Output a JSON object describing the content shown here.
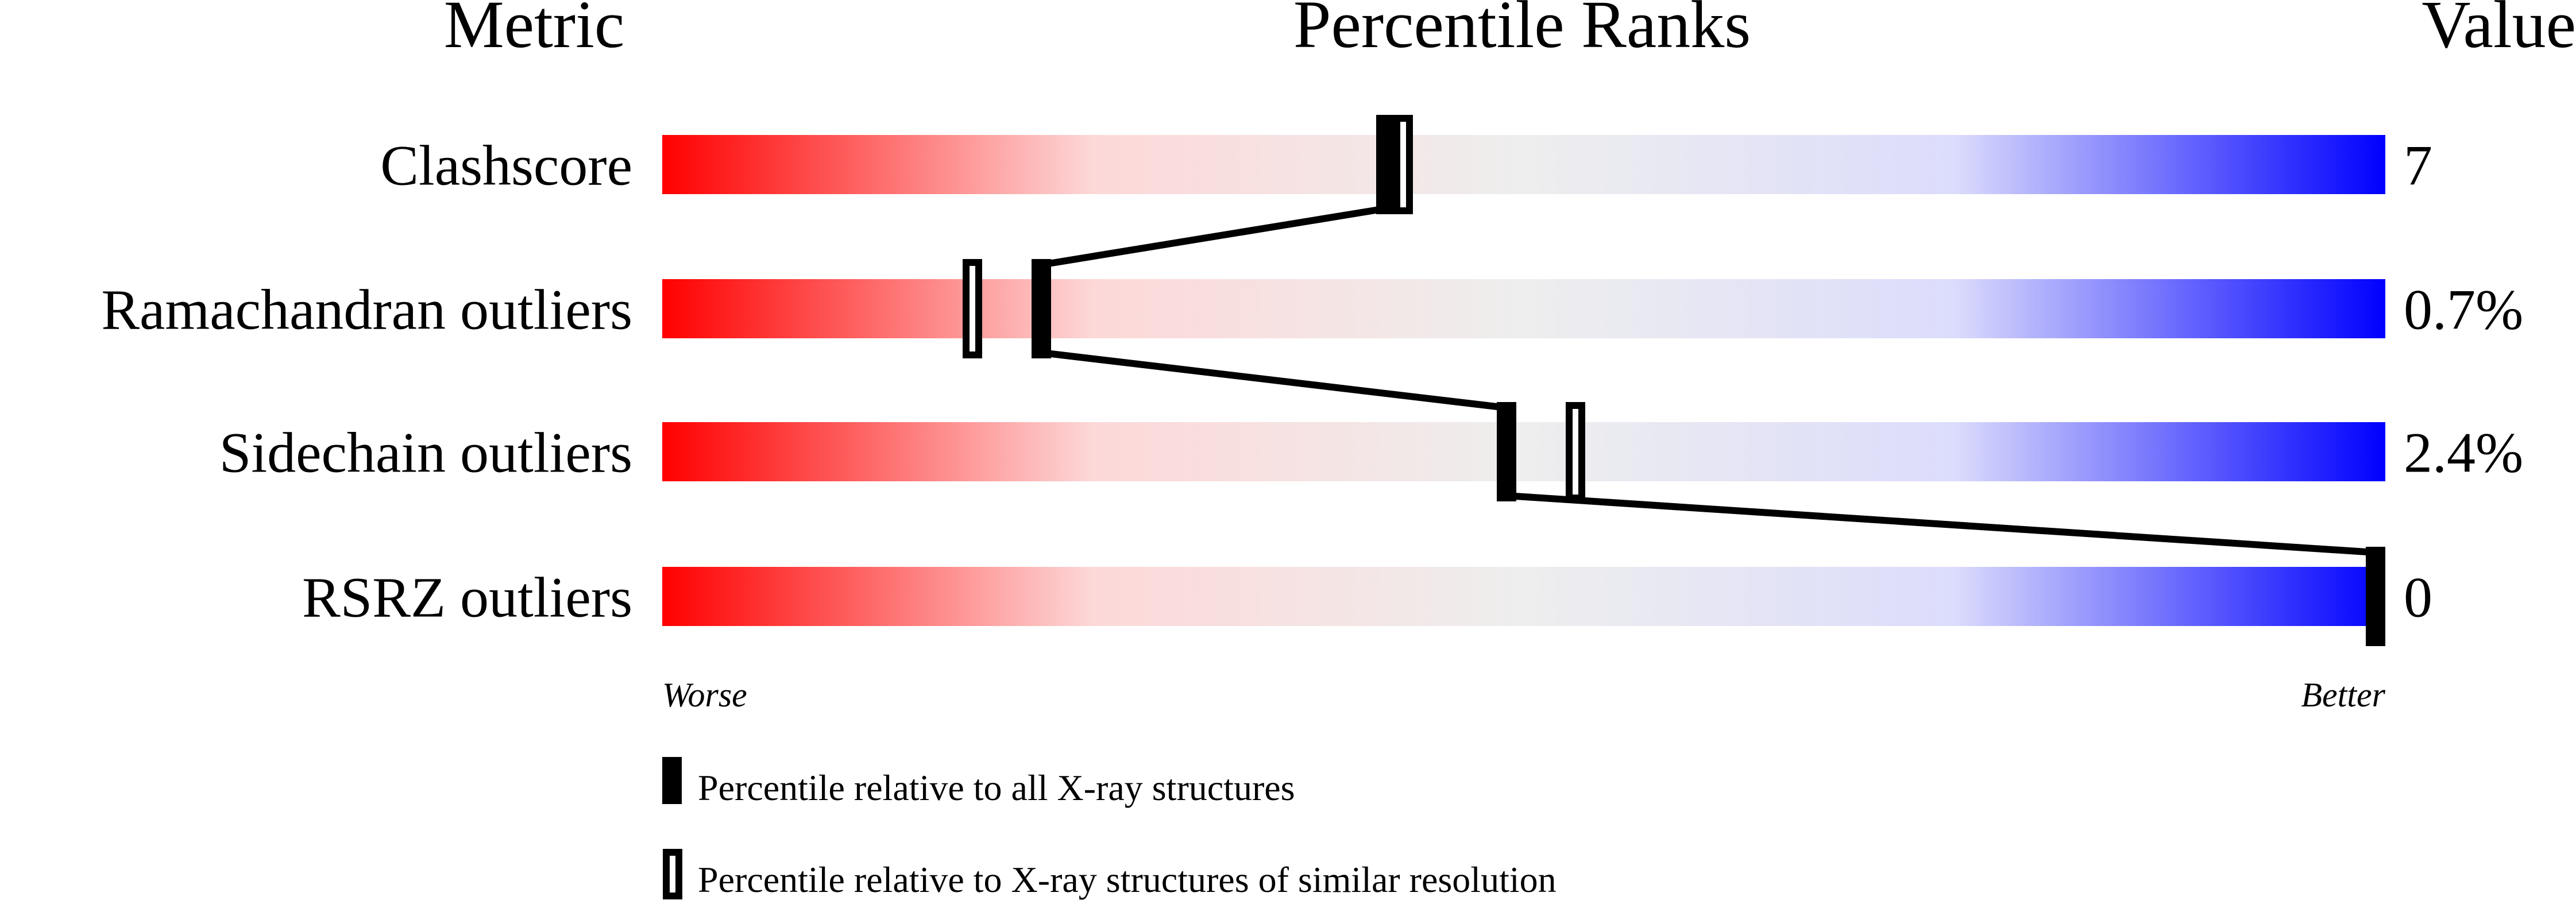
{
  "chart_data": {
    "type": "percentile-slider",
    "headers": {
      "metric": "Metric",
      "ranks": "Percentile Ranks",
      "value": "Value"
    },
    "axis": {
      "left_label": "Worse",
      "right_label": "Better",
      "range": [
        0,
        100
      ]
    },
    "gradient_colors": [
      "#ff0000",
      "#fdd8d8",
      "#eeeeee",
      "#dcdcfc",
      "#0000ff"
    ],
    "rows": [
      {
        "metric": "Clashscore",
        "value": "7",
        "percentile_all": 42,
        "percentile_similar": 43
      },
      {
        "metric": "Ramachandran outliers",
        "value": "0.7%",
        "percentile_all": 22,
        "percentile_similar": 18
      },
      {
        "metric": "Sidechain outliers",
        "value": "2.4%",
        "percentile_all": 49,
        "percentile_similar": 53
      },
      {
        "metric": "RSRZ outliers",
        "value": "0",
        "percentile_all": 100,
        "percentile_similar": null
      }
    ],
    "legend": [
      {
        "marker": "filled",
        "label": "Percentile relative to all X-ray structures"
      },
      {
        "marker": "open",
        "label": "Percentile relative to X-ray structures of similar resolution"
      }
    ]
  }
}
